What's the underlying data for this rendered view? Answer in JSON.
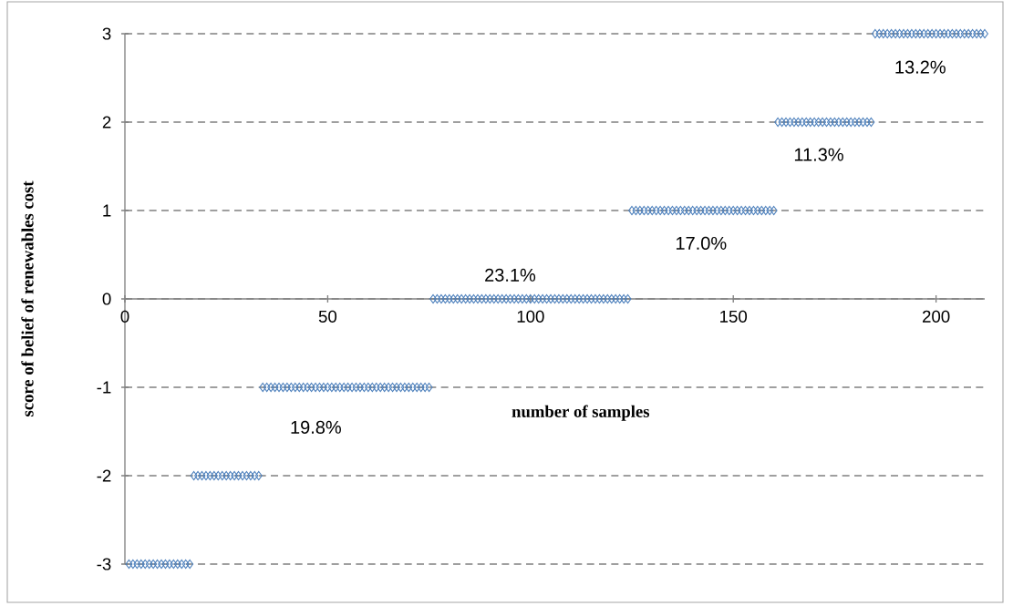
{
  "chart_data": {
    "type": "scatter",
    "xlabel": "number  of samples",
    "ylabel": "score of belief of renewables  cost",
    "x": [
      1,
      2,
      3,
      4,
      5,
      6,
      7,
      8,
      9,
      10,
      11,
      12,
      13,
      14,
      15,
      16,
      17,
      18,
      19,
      20,
      21,
      22,
      23,
      24,
      25,
      26,
      27,
      28,
      29,
      30,
      31,
      32,
      33,
      34,
      35,
      36,
      37,
      38,
      39,
      40,
      41,
      42,
      43,
      44,
      45,
      46,
      47,
      48,
      49,
      50,
      51,
      52,
      53,
      54,
      55,
      56,
      57,
      58,
      59,
      60,
      61,
      62,
      63,
      64,
      65,
      66,
      67,
      68,
      69,
      70,
      71,
      72,
      73,
      74,
      75,
      76,
      77,
      78,
      79,
      80,
      81,
      82,
      83,
      84,
      85,
      86,
      87,
      88,
      89,
      90,
      91,
      92,
      93,
      94,
      95,
      96,
      97,
      98,
      99,
      100,
      101,
      102,
      103,
      104,
      105,
      106,
      107,
      108,
      109,
      110,
      111,
      112,
      113,
      114,
      115,
      116,
      117,
      118,
      119,
      120,
      121,
      122,
      123,
      124,
      125,
      126,
      127,
      128,
      129,
      130,
      131,
      132,
      133,
      134,
      135,
      136,
      137,
      138,
      139,
      140,
      141,
      142,
      143,
      144,
      145,
      146,
      147,
      148,
      149,
      150,
      151,
      152,
      153,
      154,
      155,
      156,
      157,
      158,
      159,
      160,
      161,
      162,
      163,
      164,
      165,
      166,
      167,
      168,
      169,
      170,
      171,
      172,
      173,
      174,
      175,
      176,
      177,
      178,
      179,
      180,
      181,
      182,
      183,
      184,
      185,
      186,
      187,
      188,
      189,
      190,
      191,
      192,
      193,
      194,
      195,
      196,
      197,
      198,
      199,
      200,
      201,
      202,
      203,
      204,
      205,
      206,
      207,
      208,
      209,
      210,
      211,
      212
    ],
    "values": [
      -3,
      -3,
      -3,
      -3,
      -3,
      -3,
      -3,
      -3,
      -3,
      -3,
      -3,
      -3,
      -3,
      -3,
      -3,
      -3,
      -2,
      -2,
      -2,
      -2,
      -2,
      -2,
      -2,
      -2,
      -2,
      -2,
      -2,
      -2,
      -2,
      -2,
      -2,
      -2,
      -2,
      -1,
      -1,
      -1,
      -1,
      -1,
      -1,
      -1,
      -1,
      -1,
      -1,
      -1,
      -1,
      -1,
      -1,
      -1,
      -1,
      -1,
      -1,
      -1,
      -1,
      -1,
      -1,
      -1,
      -1,
      -1,
      -1,
      -1,
      -1,
      -1,
      -1,
      -1,
      -1,
      -1,
      -1,
      -1,
      -1,
      -1,
      -1,
      -1,
      -1,
      -1,
      -1,
      0,
      0,
      0,
      0,
      0,
      0,
      0,
      0,
      0,
      0,
      0,
      0,
      0,
      0,
      0,
      0,
      0,
      0,
      0,
      0,
      0,
      0,
      0,
      0,
      0,
      0,
      0,
      0,
      0,
      0,
      0,
      0,
      0,
      0,
      0,
      0,
      0,
      0,
      0,
      0,
      0,
      0,
      0,
      0,
      0,
      0,
      0,
      0,
      0,
      1,
      1,
      1,
      1,
      1,
      1,
      1,
      1,
      1,
      1,
      1,
      1,
      1,
      1,
      1,
      1,
      1,
      1,
      1,
      1,
      1,
      1,
      1,
      1,
      1,
      1,
      1,
      1,
      1,
      1,
      1,
      1,
      1,
      1,
      1,
      1,
      2,
      2,
      2,
      2,
      2,
      2,
      2,
      2,
      2,
      2,
      2,
      2,
      2,
      2,
      2,
      2,
      2,
      2,
      2,
      2,
      2,
      2,
      2,
      2,
      3,
      3,
      3,
      3,
      3,
      3,
      3,
      3,
      3,
      3,
      3,
      3,
      3,
      3,
      3,
      3,
      3,
      3,
      3,
      3,
      3,
      3,
      3,
      3,
      3,
      3,
      3,
      3
    ],
    "color": "#4a7ebb",
    "marker": "diamond",
    "grid": "y",
    "xlim": [
      0,
      212
    ],
    "ylim": [
      -3,
      3
    ],
    "xticks": [
      0,
      50,
      100,
      150,
      200
    ],
    "yticks": [
      -3,
      -2,
      -1,
      0,
      1,
      2,
      3
    ],
    "annotations": [
      "19.8%",
      "23.1%",
      "17.0%",
      "11.3%",
      "13.2%"
    ]
  }
}
